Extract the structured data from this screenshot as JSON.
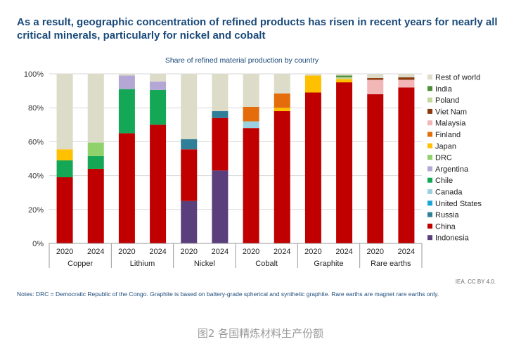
{
  "headline": "As a result, geographic concentration of refined products has risen in recent years for nearly all critical minerals, particularly for nickel and cobalt",
  "source_credit": "IEA. CC BY 4.0.",
  "notes": "Notes: DRC = Democratic Republic of the Congo. Graphite is based on battery-grade spherical and synthetic graphite. Rare earths are magnet rare earths only.",
  "caption": "图2 各国精炼材料生产份额",
  "chart_data": {
    "type": "bar",
    "stacked": true,
    "title": "Share of refined material production by country",
    "yticks": [
      "0%",
      "20%",
      "40%",
      "60%",
      "80%",
      "100%"
    ],
    "ylim": [
      0,
      100
    ],
    "grid": true,
    "legend_position": "right",
    "groups": [
      "Copper",
      "Lithium",
      "Nickel",
      "Cobalt",
      "Graphite",
      "Rare earths"
    ],
    "categories": [
      "2020",
      "2024",
      "2020",
      "2024",
      "2020",
      "2024",
      "2020",
      "2024",
      "2020",
      "2024",
      "2020",
      "2024"
    ],
    "series": [
      {
        "name": "Indonesia",
        "color": "#5b3f7c",
        "values": [
          0,
          0,
          0,
          0,
          25,
          43,
          0,
          0,
          0,
          0,
          0,
          0
        ]
      },
      {
        "name": "China",
        "color": "#c00000",
        "values": [
          39,
          44,
          65,
          70,
          30.5,
          31,
          68,
          78,
          89,
          95,
          88,
          92
        ]
      },
      {
        "name": "Russia",
        "color": "#2f7f98",
        "values": [
          0,
          0,
          0,
          0,
          6,
          4,
          0,
          0,
          0,
          0,
          0,
          0
        ]
      },
      {
        "name": "United States",
        "color": "#1aa5d6",
        "values": [
          0,
          0,
          0,
          0,
          0,
          0,
          0,
          0,
          0,
          0,
          0,
          0
        ]
      },
      {
        "name": "Canada",
        "color": "#9bd0e0",
        "values": [
          0,
          0,
          0,
          0,
          0,
          0,
          4,
          0,
          0,
          0,
          0,
          0
        ]
      },
      {
        "name": "Chile",
        "color": "#14a755",
        "values": [
          10,
          7.5,
          26,
          20.5,
          0,
          0,
          0,
          0,
          0,
          0,
          0,
          0
        ]
      },
      {
        "name": "Argentina",
        "color": "#b4a7d6",
        "values": [
          0,
          0,
          8,
          5,
          0,
          0,
          0,
          0,
          0,
          0,
          0,
          0
        ]
      },
      {
        "name": "DRC",
        "color": "#8fd16a",
        "values": [
          0,
          8,
          0,
          0,
          0,
          0,
          0,
          0,
          0,
          0,
          0,
          0
        ]
      },
      {
        "name": "Japan",
        "color": "#ffc000",
        "values": [
          6.5,
          0,
          0,
          0,
          0,
          0,
          0,
          2,
          10,
          2,
          0,
          0
        ]
      },
      {
        "name": "Finland",
        "color": "#e46c0a",
        "values": [
          0,
          0,
          0,
          0,
          0,
          0,
          8.5,
          8.5,
          0,
          0,
          0,
          0
        ]
      },
      {
        "name": "Malaysia",
        "color": "#f2b6b6",
        "values": [
          0,
          0,
          0,
          0,
          0,
          0,
          0,
          0,
          0,
          0,
          8.5,
          4.5
        ]
      },
      {
        "name": "Viet Nam",
        "color": "#8b3a0e",
        "values": [
          0,
          0,
          0,
          0,
          0,
          0,
          0,
          0,
          0,
          0,
          1,
          1.5
        ]
      },
      {
        "name": "Poland",
        "color": "#c4d79b",
        "values": [
          0,
          0,
          0,
          0,
          0,
          0,
          0,
          0,
          0,
          1,
          0,
          0
        ]
      },
      {
        "name": "India",
        "color": "#4f8f3a",
        "values": [
          0,
          0,
          0,
          0,
          0,
          0,
          0,
          0,
          0,
          1,
          0,
          0
        ]
      },
      {
        "name": "Rest of world",
        "color": "#dcdcc8",
        "values": [
          44.5,
          40.5,
          1,
          4.5,
          38.5,
          22,
          19.5,
          11.5,
          1,
          1,
          2.5,
          2
        ]
      }
    ],
    "legend_order": [
      "Rest of world",
      "India",
      "Poland",
      "Viet Nam",
      "Malaysia",
      "Finland",
      "Japan",
      "DRC",
      "Argentina",
      "Chile",
      "Canada",
      "United States",
      "Russia",
      "China",
      "Indonesia"
    ]
  }
}
